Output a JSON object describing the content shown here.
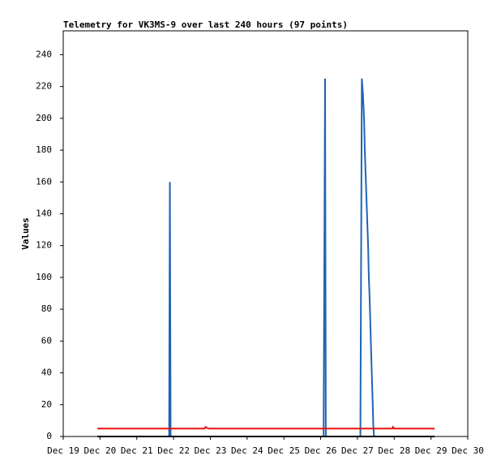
{
  "chart_data": {
    "type": "line",
    "title": "Telemetry for VK3MS-9 over last 240 hours (97 points)",
    "y_label": "Values",
    "xlim": [
      19,
      30
    ],
    "xticks": [
      {
        "value": 19,
        "label": "Dec 19"
      },
      {
        "value": 20,
        "label": "Dec 20"
      },
      {
        "value": 21,
        "label": "Dec 21"
      },
      {
        "value": 22,
        "label": "Dec 22"
      },
      {
        "value": 23,
        "label": "Dec 23"
      },
      {
        "value": 24,
        "label": "Dec 24"
      },
      {
        "value": 25,
        "label": "Dec 25"
      },
      {
        "value": 26,
        "label": "Dec 26"
      },
      {
        "value": 27,
        "label": "Dec 27"
      },
      {
        "value": 28,
        "label": "Dec 28"
      },
      {
        "value": 29,
        "label": "Dec 29"
      },
      {
        "value": 30,
        "label": "Dec 30"
      }
    ],
    "ylim": [
      0,
      255
    ],
    "yticks": [
      0,
      20,
      40,
      60,
      80,
      100,
      120,
      140,
      160,
      180,
      200,
      220,
      240
    ],
    "series": [
      {
        "color": "#1f64b4",
        "x": [
          19.93,
          21.88,
          21.9,
          21.92,
          26.08,
          26.1,
          26.12,
          26.14,
          27.08,
          27.1,
          27.12,
          27.15,
          27.18,
          27.2,
          27.23,
          27.26,
          27.29,
          27.31,
          27.33,
          27.35,
          27.37,
          27.39,
          27.41,
          27.43,
          27.45,
          29.1
        ],
        "values": [
          0,
          0,
          160,
          0,
          0,
          112,
          225,
          0,
          0,
          112,
          225,
          215,
          200,
          180,
          160,
          140,
          120,
          100,
          88,
          72,
          55,
          40,
          25,
          8,
          0,
          0
        ]
      },
      {
        "color": "#e8110f",
        "x": [
          19.93,
          22.85,
          22.87,
          22.95,
          27.95,
          27.97,
          28.0,
          29.1
        ],
        "values": [
          5,
          5,
          6,
          5,
          5,
          6,
          5,
          5
        ]
      },
      {
        "color": "#000000",
        "x": [
          19.93,
          29.1
        ],
        "values": [
          0,
          0
        ]
      }
    ]
  }
}
